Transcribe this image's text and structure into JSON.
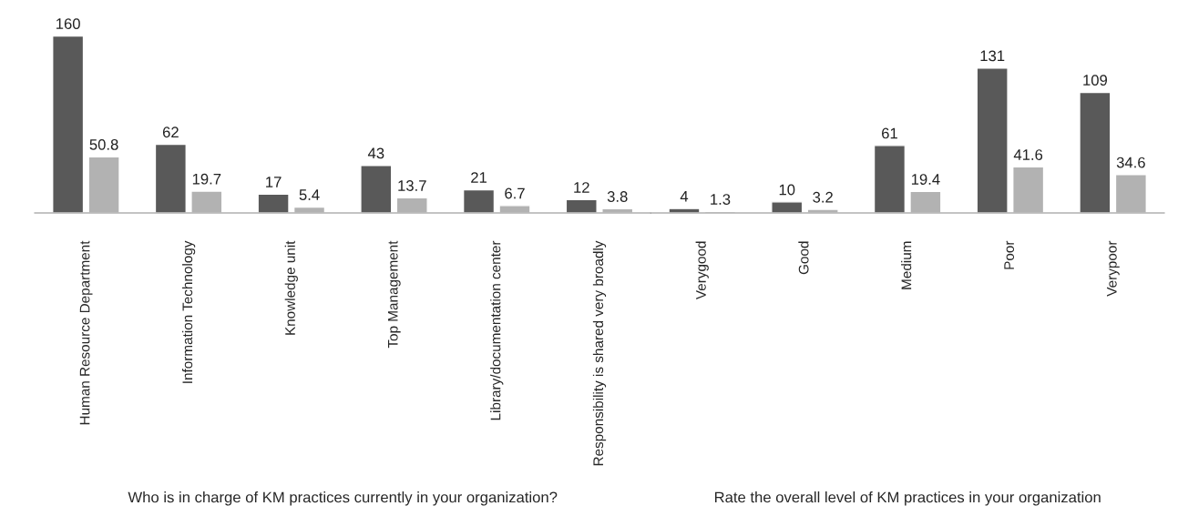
{
  "chart_data": [
    {
      "type": "bar",
      "xlabel": "Who is in charge of KM practices currently in your organization?",
      "categories": [
        "Human Resource Department",
        "Information Technology",
        "Knowledge unit",
        "Top Management",
        "Library/documentation center",
        "Responsibility is shared very broadly"
      ],
      "series": [
        {
          "color": "#595959",
          "values": [
            160,
            62,
            17,
            43,
            21,
            12
          ]
        },
        {
          "color": "#b2b2b2",
          "values": [
            50.8,
            19.7,
            5.4,
            13.7,
            6.7,
            3.8
          ]
        }
      ],
      "data_labels": true,
      "grid": false
    },
    {
      "type": "bar",
      "xlabel": "Rate the overall level of KM practices in your organization",
      "categories": [
        "Verygood",
        "Good",
        "Medium",
        "Poor",
        "Verypoor"
      ],
      "series": [
        {
          "color": "#595959",
          "values": [
            4,
            10,
            61,
            131,
            109
          ]
        },
        {
          "color": "#b2b2b2",
          "values": [
            1.3,
            3.2,
            19.4,
            41.6,
            34.6
          ]
        }
      ],
      "data_labels": true,
      "grid": false
    }
  ]
}
